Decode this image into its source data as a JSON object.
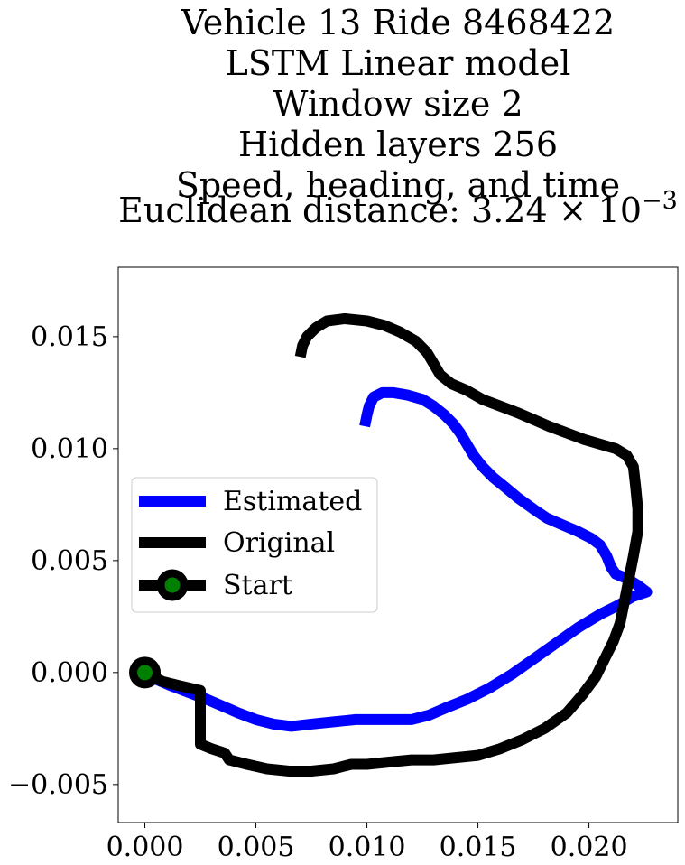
{
  "chart_data": {
    "type": "line",
    "title_lines": [
      "Vehicle 13 Ride 8468422",
      "LSTM Linear model",
      "Window size 2",
      "Hidden layers 256",
      "Speed, heading, and time"
    ],
    "title_last_prefix": "Euclidean distance: 3.24",
    "title_last_times": "×",
    "title_last_base": "10",
    "title_last_exponent": "−3",
    "xlabel": "",
    "ylabel": "",
    "xlim": [
      -0.0012,
      0.024
    ],
    "ylim": [
      -0.0067,
      0.0181
    ],
    "xticks": [
      {
        "value": 0.0,
        "label": "0.000"
      },
      {
        "value": 0.005,
        "label": "0.005"
      },
      {
        "value": 0.01,
        "label": "0.010"
      },
      {
        "value": 0.015,
        "label": "0.015"
      },
      {
        "value": 0.02,
        "label": "0.020"
      }
    ],
    "yticks": [
      {
        "value": -0.005,
        "label": "−0.005"
      },
      {
        "value": 0.0,
        "label": "0.000"
      },
      {
        "value": 0.005,
        "label": "0.005"
      },
      {
        "value": 0.01,
        "label": "0.010"
      },
      {
        "value": 0.015,
        "label": "0.015"
      }
    ],
    "grid": false,
    "legend_position": "center-left",
    "series": [
      {
        "name": "Estimated",
        "color": "#0000ff",
        "points": [
          [
            0.0,
            0.0
          ],
          [
            0.0005,
            -0.0003
          ],
          [
            0.0012,
            -0.0006
          ],
          [
            0.002,
            -0.0009
          ],
          [
            0.0028,
            -0.0012
          ],
          [
            0.0035,
            -0.0015
          ],
          [
            0.0042,
            -0.0018
          ],
          [
            0.005,
            -0.0021
          ],
          [
            0.0058,
            -0.0023
          ],
          [
            0.0066,
            -0.0024
          ],
          [
            0.0075,
            -0.0023
          ],
          [
            0.0085,
            -0.0022
          ],
          [
            0.0095,
            -0.0021
          ],
          [
            0.0105,
            -0.0021
          ],
          [
            0.0115,
            -0.0021
          ],
          [
            0.012,
            -0.0021
          ],
          [
            0.0128,
            -0.0019
          ],
          [
            0.0135,
            -0.0016
          ],
          [
            0.0145,
            -0.0012
          ],
          [
            0.0155,
            -0.0007
          ],
          [
            0.0165,
            -0.0001
          ],
          [
            0.0175,
            0.0006
          ],
          [
            0.0185,
            0.0013
          ],
          [
            0.0195,
            0.002
          ],
          [
            0.0205,
            0.0026
          ],
          [
            0.0213,
            0.003
          ],
          [
            0.022,
            0.0034
          ],
          [
            0.0226,
            0.0036
          ],
          [
            0.0222,
            0.0039
          ],
          [
            0.0217,
            0.0042
          ],
          [
            0.0212,
            0.0044
          ],
          [
            0.021,
            0.0047
          ],
          [
            0.0208,
            0.0052
          ],
          [
            0.0205,
            0.0057
          ],
          [
            0.0201,
            0.006
          ],
          [
            0.0195,
            0.0063
          ],
          [
            0.0188,
            0.0066
          ],
          [
            0.0181,
            0.0069
          ],
          [
            0.0175,
            0.0073
          ],
          [
            0.0168,
            0.0078
          ],
          [
            0.0162,
            0.0083
          ],
          [
            0.0157,
            0.0087
          ],
          [
            0.0152,
            0.0092
          ],
          [
            0.0148,
            0.0097
          ],
          [
            0.0145,
            0.0102
          ],
          [
            0.0142,
            0.0107
          ],
          [
            0.0139,
            0.0111
          ],
          [
            0.0135,
            0.0115
          ],
          [
            0.013,
            0.0119
          ],
          [
            0.0125,
            0.0122
          ],
          [
            0.0118,
            0.0124
          ],
          [
            0.0112,
            0.0125
          ],
          [
            0.0107,
            0.0125
          ],
          [
            0.0103,
            0.0123
          ],
          [
            0.0101,
            0.0119
          ],
          [
            0.01,
            0.0115
          ],
          [
            0.0099,
            0.011
          ]
        ]
      },
      {
        "name": "Original",
        "color": "#000000",
        "points": [
          [
            0.0,
            0.0
          ],
          [
            0.0008,
            -0.0004
          ],
          [
            0.0016,
            -0.0006
          ],
          [
            0.0025,
            -0.0008
          ],
          [
            0.0025,
            -0.0015
          ],
          [
            0.0025,
            -0.0024
          ],
          [
            0.0025,
            -0.0032
          ],
          [
            0.003,
            -0.0034
          ],
          [
            0.0036,
            -0.0036
          ],
          [
            0.0038,
            -0.0039
          ],
          [
            0.0046,
            -0.0041
          ],
          [
            0.0055,
            -0.0043
          ],
          [
            0.0065,
            -0.0044
          ],
          [
            0.0075,
            -0.0044
          ],
          [
            0.0085,
            -0.0043
          ],
          [
            0.0093,
            -0.0041
          ],
          [
            0.01,
            -0.0041
          ],
          [
            0.011,
            -0.004
          ],
          [
            0.012,
            -0.0039
          ],
          [
            0.013,
            -0.0039
          ],
          [
            0.014,
            -0.0038
          ],
          [
            0.015,
            -0.0037
          ],
          [
            0.016,
            -0.0034
          ],
          [
            0.017,
            -0.003
          ],
          [
            0.018,
            -0.0025
          ],
          [
            0.019,
            -0.0018
          ],
          [
            0.0197,
            -0.001
          ],
          [
            0.0203,
            -0.0002
          ],
          [
            0.0207,
            0.0006
          ],
          [
            0.0211,
            0.0014
          ],
          [
            0.0214,
            0.0022
          ],
          [
            0.0216,
            0.0032
          ],
          [
            0.0218,
            0.0042
          ],
          [
            0.022,
            0.0052
          ],
          [
            0.0222,
            0.0063
          ],
          [
            0.0222,
            0.0073
          ],
          [
            0.0221,
            0.0083
          ],
          [
            0.022,
            0.0092
          ],
          [
            0.0217,
            0.0097
          ],
          [
            0.0212,
            0.01
          ],
          [
            0.0205,
            0.0102
          ],
          [
            0.0198,
            0.0104
          ],
          [
            0.019,
            0.0107
          ],
          [
            0.0182,
            0.011
          ],
          [
            0.0175,
            0.0113
          ],
          [
            0.0168,
            0.0116
          ],
          [
            0.016,
            0.0119
          ],
          [
            0.0152,
            0.0122
          ],
          [
            0.0145,
            0.0126
          ],
          [
            0.0138,
            0.0129
          ],
          [
            0.0133,
            0.0133
          ],
          [
            0.013,
            0.0138
          ],
          [
            0.0127,
            0.0143
          ],
          [
            0.0122,
            0.0148
          ],
          [
            0.0115,
            0.0152
          ],
          [
            0.0108,
            0.0155
          ],
          [
            0.01,
            0.0157
          ],
          [
            0.009,
            0.0158
          ],
          [
            0.0082,
            0.0157
          ],
          [
            0.0077,
            0.0154
          ],
          [
            0.0073,
            0.015
          ],
          [
            0.0071,
            0.0146
          ],
          [
            0.007,
            0.0141
          ]
        ]
      },
      {
        "name": "Start",
        "color": "#000000",
        "marker_face": "#008000",
        "points": [
          [
            0.0,
            0.0
          ]
        ]
      }
    ]
  }
}
